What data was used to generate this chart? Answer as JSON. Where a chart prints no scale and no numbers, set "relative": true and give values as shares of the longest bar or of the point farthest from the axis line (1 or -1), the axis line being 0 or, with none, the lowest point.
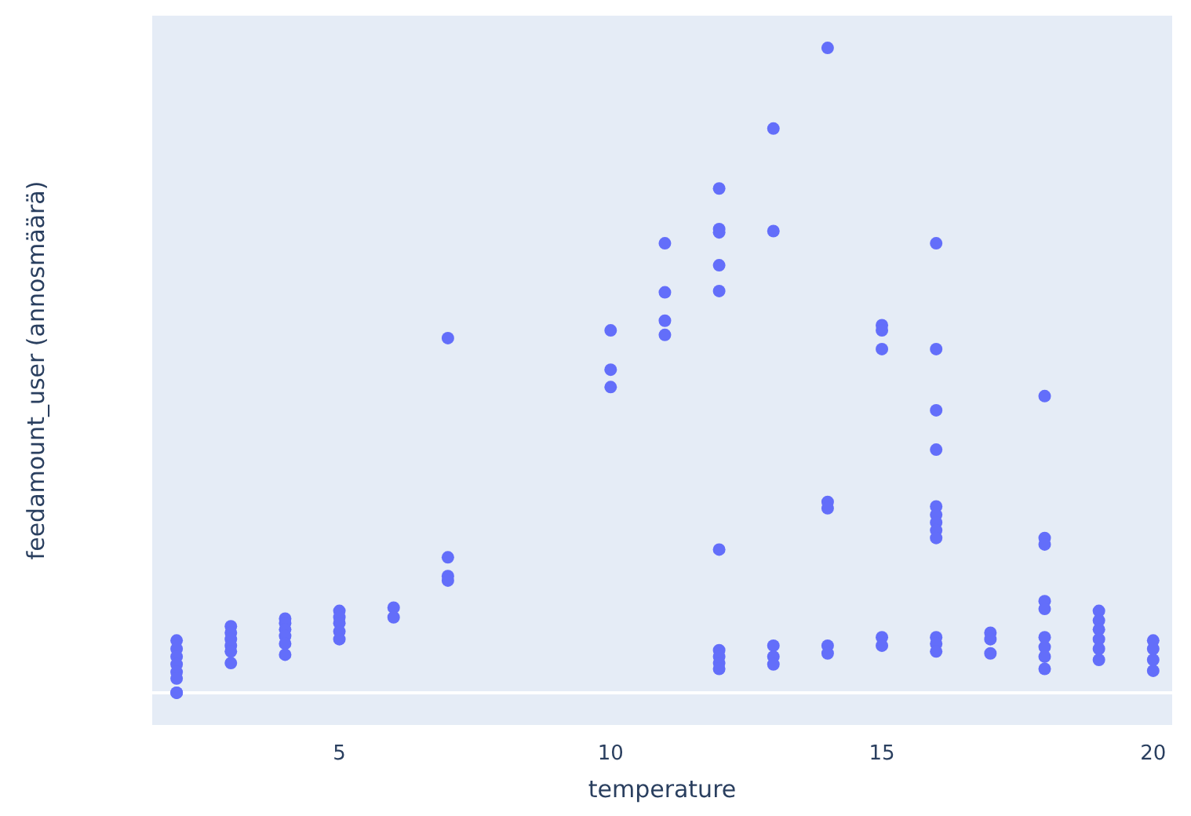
{
  "chart_data": {
    "type": "scatter",
    "xlabel": "temperature",
    "ylabel": "feedamount_user (annosmäärä)",
    "relative": true,
    "color": "#636efa",
    "marker": "circle",
    "xlim": [
      1.55,
      20.35
    ],
    "xticks": [
      5,
      10,
      15,
      20
    ],
    "x": [
      2,
      2,
      2,
      2,
      2,
      2,
      2,
      2,
      3,
      3,
      3,
      3,
      3,
      3,
      4,
      4,
      4,
      4,
      4,
      4,
      5,
      5,
      5,
      5,
      5,
      6,
      6,
      7,
      7,
      7,
      7,
      10,
      10,
      10,
      11,
      11,
      11,
      11,
      12,
      12,
      12,
      12,
      12,
      12,
      12,
      12,
      12,
      12,
      13,
      13,
      13,
      13,
      13,
      14,
      14,
      14,
      14,
      14,
      15,
      15,
      15,
      15,
      15,
      16,
      16,
      16,
      16,
      16,
      16,
      16,
      16,
      16,
      16,
      16,
      16,
      17,
      17,
      17,
      18,
      18,
      18,
      18,
      18,
      18,
      18,
      18,
      18,
      19,
      19,
      19,
      19,
      19,
      19,
      20,
      20,
      20,
      20
    ],
    "values": [
      0.081,
      0.068,
      0.056,
      0.044,
      0.032,
      0.022,
      0,
      0,
      0.103,
      0.093,
      0.083,
      0.073,
      0.064,
      0.046,
      0.115,
      0.108,
      0.098,
      0.088,
      0.076,
      0.059,
      0.127,
      0.117,
      0.108,
      0.095,
      0.083,
      0.132,
      0.117,
      0.55,
      0.21,
      0.181,
      0.174,
      0.562,
      0.501,
      0.474,
      0.697,
      0.621,
      0.577,
      0.555,
      0.782,
      0.719,
      0.714,
      0.663,
      0.623,
      0.222,
      0.066,
      0.056,
      0.046,
      0.037,
      0.875,
      0.716,
      0.073,
      0.056,
      0.044,
      1,
      0.296,
      0.286,
      0.073,
      0.061,
      0.57,
      0.562,
      0.533,
      0.086,
      0.073,
      0.697,
      0.533,
      0.438,
      0.377,
      0.289,
      0.276,
      0.264,
      0.252,
      0.24,
      0.086,
      0.076,
      0.064,
      0.093,
      0.083,
      0.061,
      0.46,
      0.24,
      0.23,
      0.142,
      0.13,
      0.086,
      0.071,
      0.056,
      0.037,
      0.127,
      0.112,
      0.098,
      0.083,
      0.068,
      0.051,
      0.081,
      0.068,
      0.051,
      0.034
    ]
  }
}
